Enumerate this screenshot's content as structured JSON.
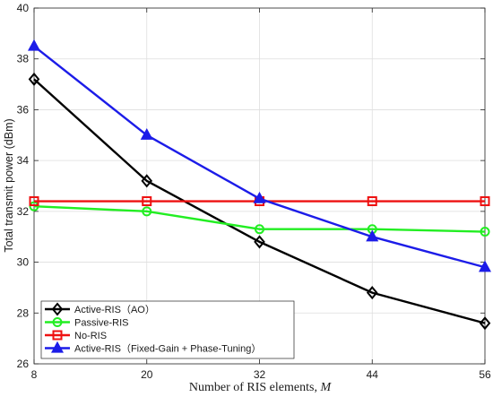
{
  "chart_data": {
    "type": "line",
    "xlabel": "Number of RIS elements, ",
    "xlabel_symbol": "M",
    "ylabel": "Total transmit power (dBm)",
    "x": [
      8,
      20,
      32,
      44,
      56
    ],
    "xlim": [
      8,
      56
    ],
    "ylim": [
      26,
      40
    ],
    "xticks": [
      "8",
      "20",
      "32",
      "44",
      "56"
    ],
    "yticks": [
      "26",
      "28",
      "30",
      "32",
      "34",
      "36",
      "38",
      "40"
    ],
    "grid": true,
    "legend_position": "bottom-left",
    "series": [
      {
        "name": "Active-RIS（AO）",
        "values": [
          37.2,
          33.2,
          30.8,
          28.8,
          27.6
        ],
        "color": "#000000",
        "marker": "diamond"
      },
      {
        "name": "Passive-RIS",
        "values": [
          32.2,
          32.0,
          31.3,
          31.3,
          31.2
        ],
        "color": "#22ee22",
        "marker": "circle"
      },
      {
        "name": "No-RIS",
        "values": [
          32.4,
          32.4,
          32.4,
          32.4,
          32.4
        ],
        "color": "#ee1111",
        "marker": "square"
      },
      {
        "name": "Active-RIS（Fixed-Gain + Phase-Tuning）",
        "values": [
          38.5,
          35.0,
          32.5,
          31.0,
          29.8
        ],
        "color": "#1c1ce8",
        "marker": "triangle"
      }
    ]
  }
}
